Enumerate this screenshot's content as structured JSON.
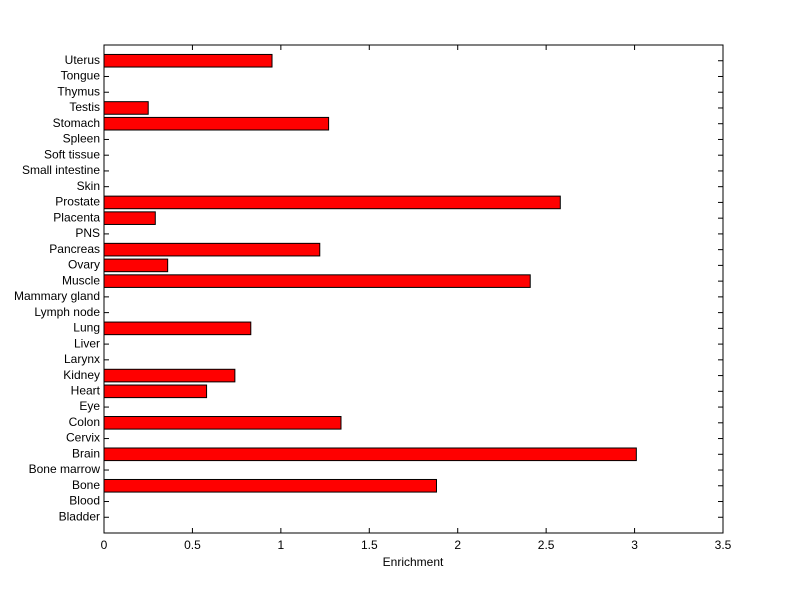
{
  "chart_data": {
    "type": "barh",
    "xlabel": "Enrichment",
    "categories": [
      "Bladder",
      "Blood",
      "Bone",
      "Bone marrow",
      "Brain",
      "Cervix",
      "Colon",
      "Eye",
      "Heart",
      "Kidney",
      "Larynx",
      "Liver",
      "Lung",
      "Lymph node",
      "Mammary gland",
      "Muscle",
      "Ovary",
      "Pancreas",
      "PNS",
      "Placenta",
      "Prostate",
      "Skin",
      "Small intestine",
      "Soft tissue",
      "Spleen",
      "Stomach",
      "Testis",
      "Thymus",
      "Tongue",
      "Uterus"
    ],
    "values": [
      0,
      0,
      1.88,
      0,
      3.01,
      0,
      1.34,
      0,
      0.58,
      0.74,
      0,
      0,
      0.83,
      0,
      0,
      2.41,
      0.36,
      1.22,
      0,
      0.29,
      2.58,
      0,
      0,
      0,
      0,
      1.27,
      0.25,
      0,
      0,
      0.95
    ],
    "color": "#ff0000",
    "xlim": [
      0,
      3.5
    ],
    "xticks": [
      0,
      0.5,
      1,
      1.5,
      2,
      2.5,
      3,
      3.5
    ]
  }
}
